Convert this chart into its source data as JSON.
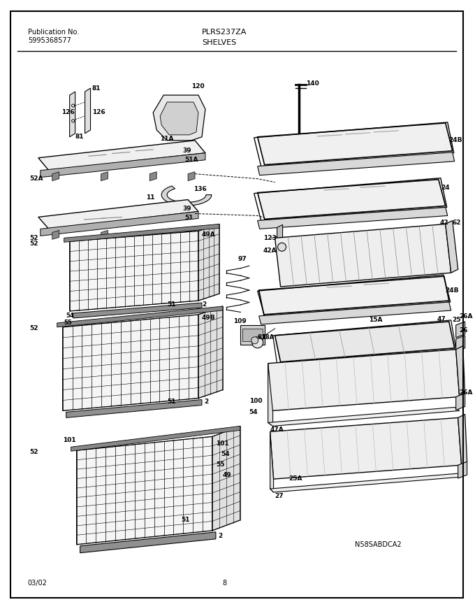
{
  "page_width": 6.8,
  "page_height": 8.71,
  "dpi": 100,
  "background_color": "#ffffff",
  "pub_label": "Publication No.",
  "pub_number": "5995368577",
  "model": "PLRS237ZA",
  "section": "SHELVES",
  "footer_date": "03/02",
  "footer_page": "8",
  "model_id": "N58SABDCA2"
}
